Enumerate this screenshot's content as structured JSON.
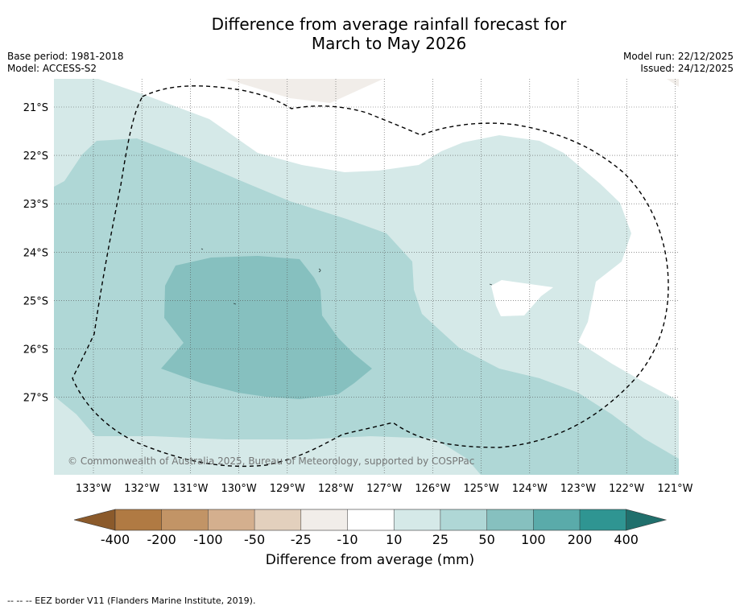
{
  "title": {
    "line1": "Difference from average rainfall forecast for",
    "line2": "March to May 2026"
  },
  "meta_left": {
    "base_period": "Base period: 1981-2018",
    "model": "Model: ACCESS-S2"
  },
  "meta_right": {
    "model_run": "Model run: 22/12/2025",
    "issued": "Issued: 24/12/2025"
  },
  "map": {
    "lat_labels": [
      "21°S",
      "22°S",
      "23°S",
      "24°S",
      "25°S",
      "26°S",
      "27°S"
    ],
    "lon_labels": [
      "133°W",
      "132°W",
      "131°W",
      "130°W",
      "129°W",
      "128°W",
      "127°W",
      "126°W",
      "125°W",
      "124°W",
      "123°W",
      "122°W",
      "121°W"
    ],
    "copyright": "© Commonwealth of Australia 2025, Bureau of Meteorology, supported by COSPPac",
    "colors": {
      "class_10_25": "#d5e9e8",
      "class_25_50": "#afd7d6",
      "class_50_100": "#86c0bf",
      "class_neg10_neg25": "#f1ede9"
    }
  },
  "colorbar": {
    "ticks": [
      "-400",
      "-200",
      "-100",
      "-50",
      "-25",
      "-10",
      "10",
      "25",
      "50",
      "100",
      "200",
      "400"
    ],
    "colors": [
      "#8b5a2b",
      "#b07a43",
      "#c29466",
      "#d4af8e",
      "#e3d0bd",
      "#f1ede9",
      "#ffffff",
      "#d5e9e8",
      "#afd7d6",
      "#86c0bf",
      "#5aabaa",
      "#2f9592",
      "#206f6c"
    ],
    "label": "Difference from average (mm)"
  },
  "footnote": "-- -- -- EEZ border V11 (Flanders Marine Institute, 2019)."
}
